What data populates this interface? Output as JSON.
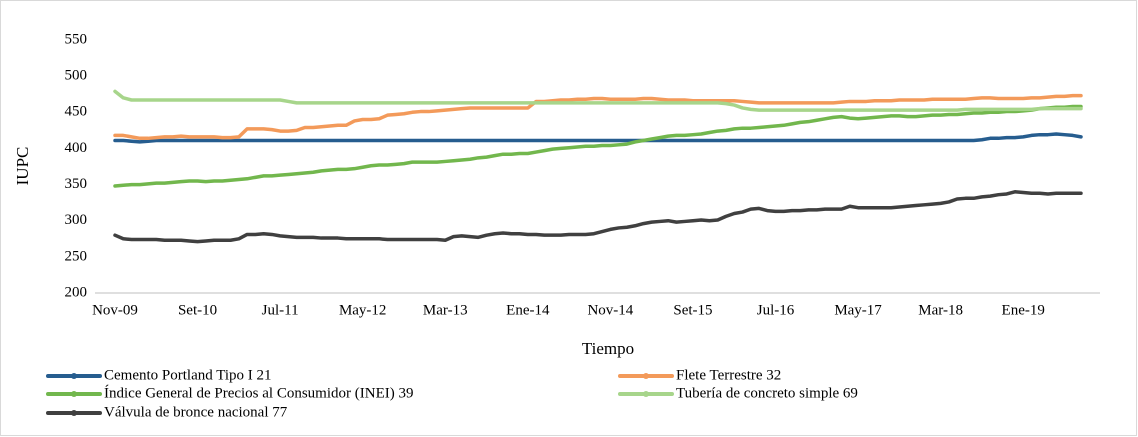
{
  "chart_data": {
    "type": "line",
    "x_label": "Tiempo",
    "y_label": "IUPC",
    "categories": [
      "Nov-09",
      null,
      null,
      null,
      null,
      null,
      null,
      null,
      null,
      null,
      "Set-10",
      null,
      null,
      null,
      null,
      null,
      null,
      null,
      null,
      null,
      "Jul-11",
      null,
      null,
      null,
      null,
      null,
      null,
      null,
      null,
      null,
      "May-12",
      null,
      null,
      null,
      null,
      null,
      null,
      null,
      null,
      null,
      "Mar-13",
      null,
      null,
      null,
      null,
      null,
      null,
      null,
      null,
      null,
      "Ene-14",
      null,
      null,
      null,
      null,
      null,
      null,
      null,
      null,
      null,
      "Nov-14",
      null,
      null,
      null,
      null,
      null,
      null,
      null,
      null,
      null,
      "Set-15",
      null,
      null,
      null,
      null,
      null,
      null,
      null,
      null,
      null,
      "Jul-16",
      null,
      null,
      null,
      null,
      null,
      null,
      null,
      null,
      null,
      "May-17",
      null,
      null,
      null,
      null,
      null,
      null,
      null,
      null,
      null,
      "Mar-18",
      null,
      null,
      null,
      null,
      null,
      null,
      null,
      null,
      null,
      "Ene-19",
      null,
      null,
      null,
      null,
      null,
      null,
      null
    ],
    "ylim": [
      200,
      550
    ],
    "yticks": [
      200,
      250,
      300,
      350,
      400,
      450,
      500,
      550
    ],
    "grid": false,
    "series": [
      {
        "name": "Cemento Portland Tipo I 21",
        "color": "#265d8f",
        "values": [
          411,
          411,
          410,
          409,
          410,
          411,
          411,
          411,
          411,
          411,
          411,
          411,
          411,
          411,
          411,
          411,
          411,
          411,
          411,
          411,
          411,
          411,
          411,
          411,
          411,
          411,
          411,
          411,
          411,
          411,
          411,
          411,
          411,
          411,
          411,
          411,
          411,
          411,
          411,
          411,
          411,
          411,
          411,
          411,
          411,
          411,
          411,
          411,
          411,
          411,
          411,
          411,
          411,
          411,
          411,
          411,
          411,
          411,
          411,
          411,
          411,
          411,
          411,
          411,
          411,
          411,
          411,
          411,
          411,
          411,
          411,
          411,
          411,
          411,
          411,
          411,
          411,
          411,
          411,
          411,
          411,
          411,
          411,
          411,
          411,
          411,
          411,
          411,
          411,
          411,
          411,
          411,
          411,
          411,
          411,
          411,
          411,
          411,
          411,
          411,
          411,
          411,
          411,
          411,
          411,
          412,
          414,
          414,
          415,
          415,
          416,
          418,
          419,
          419,
          420,
          419,
          418,
          416
        ]
      },
      {
        "name": "Flete Terrestre 32",
        "color": "#f39a5a",
        "values": [
          418,
          418,
          416,
          414,
          414,
          415,
          416,
          416,
          417,
          416,
          416,
          416,
          416,
          415,
          415,
          416,
          427,
          427,
          427,
          426,
          424,
          424,
          425,
          429,
          429,
          430,
          431,
          432,
          432,
          438,
          440,
          440,
          441,
          446,
          447,
          448,
          450,
          451,
          451,
          452,
          453,
          454,
          455,
          456,
          456,
          456,
          456,
          456,
          456,
          456,
          456,
          465,
          465,
          466,
          467,
          467,
          468,
          468,
          469,
          469,
          468,
          468,
          468,
          468,
          469,
          469,
          468,
          467,
          467,
          467,
          466,
          466,
          466,
          466,
          466,
          466,
          465,
          464,
          463,
          463,
          463,
          463,
          463,
          463,
          463,
          463,
          463,
          463,
          464,
          465,
          465,
          465,
          466,
          466,
          466,
          467,
          467,
          467,
          467,
          468,
          468,
          468,
          468,
          468,
          469,
          470,
          470,
          469,
          469,
          469,
          469,
          470,
          470,
          471,
          472,
          472,
          473,
          473
        ]
      },
      {
        "name": "Índice General de Precios al Consumidor (INEI) 39",
        "color": "#72b74d",
        "values": [
          348,
          349,
          350,
          350,
          351,
          352,
          352,
          353,
          354,
          355,
          355,
          354,
          355,
          355,
          356,
          357,
          358,
          360,
          362,
          362,
          363,
          364,
          365,
          366,
          367,
          369,
          370,
          371,
          371,
          372,
          374,
          376,
          377,
          377,
          378,
          379,
          381,
          381,
          381,
          381,
          382,
          383,
          384,
          385,
          387,
          388,
          390,
          392,
          392,
          393,
          393,
          395,
          397,
          399,
          400,
          401,
          402,
          403,
          403,
          404,
          404,
          405,
          406,
          409,
          411,
          413,
          415,
          417,
          418,
          418,
          419,
          420,
          422,
          424,
          425,
          427,
          428,
          428,
          429,
          430,
          431,
          432,
          434,
          436,
          437,
          439,
          441,
          443,
          444,
          442,
          441,
          442,
          443,
          444,
          445,
          445,
          444,
          444,
          445,
          446,
          446,
          447,
          447,
          448,
          449,
          449,
          450,
          450,
          451,
          451,
          452,
          453,
          455,
          456,
          457,
          457,
          458,
          458
        ]
      },
      {
        "name": "Tubería de concreto simple 69",
        "color": "#a7d58b",
        "values": [
          479,
          470,
          467,
          467,
          467,
          467,
          467,
          467,
          467,
          467,
          467,
          467,
          467,
          467,
          467,
          467,
          467,
          467,
          467,
          467,
          467,
          465,
          463,
          463,
          463,
          463,
          463,
          463,
          463,
          463,
          463,
          463,
          463,
          463,
          463,
          463,
          463,
          463,
          463,
          463,
          463,
          463,
          463,
          463,
          463,
          463,
          463,
          463,
          463,
          463,
          463,
          463,
          463,
          463,
          463,
          463,
          463,
          463,
          463,
          463,
          463,
          463,
          463,
          463,
          463,
          463,
          463,
          463,
          463,
          463,
          463,
          463,
          463,
          463,
          462,
          460,
          456,
          454,
          453,
          453,
          453,
          453,
          453,
          453,
          453,
          453,
          453,
          453,
          453,
          453,
          453,
          453,
          453,
          453,
          453,
          453,
          453,
          453,
          453,
          453,
          453,
          453,
          453,
          454,
          454,
          454,
          454,
          454,
          454,
          454,
          454,
          454,
          455,
          455,
          455,
          455,
          455,
          455
        ]
      },
      {
        "name": "Válvula de bronce  nacional 77",
        "color": "#404040",
        "values": [
          280,
          275,
          274,
          274,
          274,
          274,
          273,
          273,
          273,
          272,
          271,
          272,
          273,
          273,
          273,
          275,
          281,
          281,
          282,
          281,
          279,
          278,
          277,
          277,
          277,
          276,
          276,
          276,
          275,
          275,
          275,
          275,
          275,
          274,
          274,
          274,
          274,
          274,
          274,
          274,
          273,
          278,
          279,
          278,
          277,
          280,
          282,
          283,
          282,
          282,
          281,
          281,
          280,
          280,
          280,
          281,
          281,
          281,
          282,
          285,
          288,
          290,
          291,
          293,
          296,
          298,
          299,
          300,
          298,
          299,
          300,
          301,
          300,
          301,
          306,
          310,
          312,
          316,
          317,
          314,
          313,
          313,
          314,
          314,
          315,
          315,
          316,
          316,
          316,
          320,
          318,
          318,
          318,
          318,
          318,
          319,
          320,
          321,
          322,
          323,
          324,
          326,
          330,
          331,
          331,
          333,
          334,
          336,
          337,
          340,
          339,
          338,
          338,
          337,
          338,
          338,
          338,
          338
        ]
      }
    ]
  }
}
